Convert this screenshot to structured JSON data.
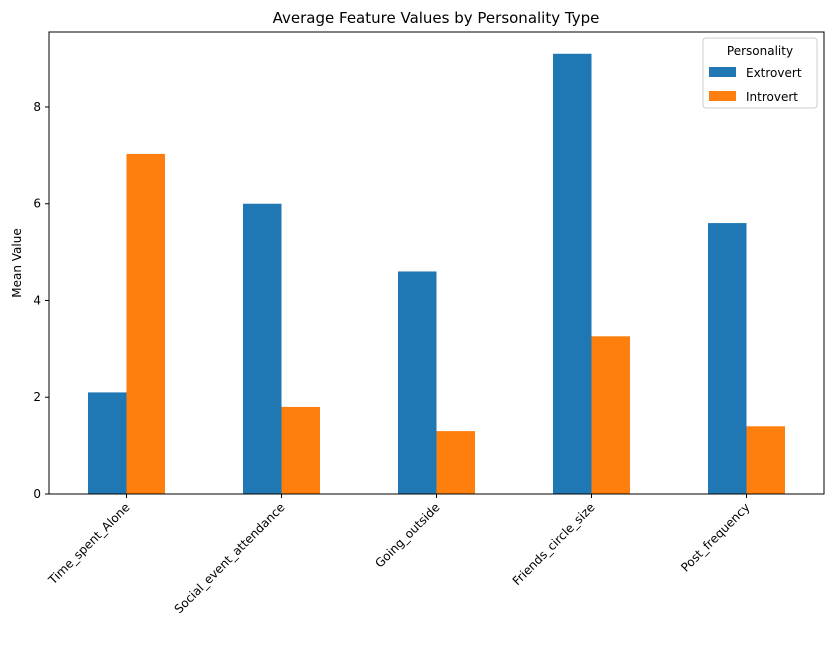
{
  "chart_data": {
    "type": "bar",
    "title": "Average Feature Values by Personality Type",
    "xlabel": "",
    "ylabel": "Mean Value",
    "categories": [
      "Time_spent_Alone",
      "Social_event_attendance",
      "Going_outside",
      "Friends_circle_size",
      "Post_frequency"
    ],
    "series": [
      {
        "name": "Extrovert",
        "color": "#1f77b4",
        "values": [
          2.1,
          6.0,
          4.6,
          9.1,
          5.6
        ]
      },
      {
        "name": "Introvert",
        "color": "#ff7f0e",
        "values": [
          7.03,
          1.8,
          1.3,
          3.26,
          1.4
        ]
      }
    ],
    "ylim": [
      0,
      9.55
    ],
    "yticks": [
      0,
      2,
      4,
      6,
      8
    ],
    "grid": false,
    "legend": {
      "title": "Personality",
      "placement": "top-right"
    }
  }
}
